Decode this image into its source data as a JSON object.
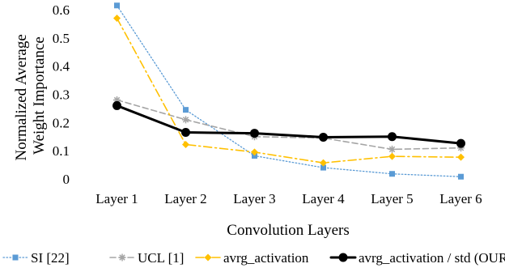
{
  "chart_data": {
    "type": "line",
    "categories": [
      "Layer 1",
      "Layer 2",
      "Layer 3",
      "Layer 4",
      "Layer 5",
      "Layer 6"
    ],
    "xlabel": "Convolution Layers",
    "ylabel_lines": [
      "Normalized Average",
      "Weight Importance"
    ],
    "ylim": [
      0,
      0.6
    ],
    "yticks": [
      "0",
      "0.1",
      "0.2",
      "0.3",
      "0.4",
      "0.5",
      "0.6"
    ],
    "grid": false,
    "legend_position": "bottom",
    "series": [
      {
        "name": "SI [22]",
        "values": [
          0.615,
          0.245,
          0.082,
          0.04,
          0.018,
          0.008
        ],
        "color": "#5b9bd5",
        "dash": "1.5,2.5",
        "stroke_width": 1.3,
        "marker": "square"
      },
      {
        "name": "UCL [1]",
        "values": [
          0.28,
          0.21,
          0.15,
          0.145,
          0.105,
          0.11
        ],
        "color": "#a5a5a5",
        "dash": "7,4",
        "stroke_width": 1.6,
        "marker": "star"
      },
      {
        "name": "avrg_activation",
        "values": [
          0.57,
          0.122,
          0.095,
          0.057,
          0.08,
          0.077
        ],
        "color": "#ffc000",
        "dash": "10,4,2,4",
        "stroke_width": 1.6,
        "marker": "diamond"
      },
      {
        "name": "avrg_activation / std (OURS)",
        "values": [
          0.26,
          0.165,
          0.162,
          0.148,
          0.15,
          0.126
        ],
        "color": "#000000",
        "dash": "",
        "stroke_width": 3,
        "marker": "circle"
      }
    ]
  }
}
